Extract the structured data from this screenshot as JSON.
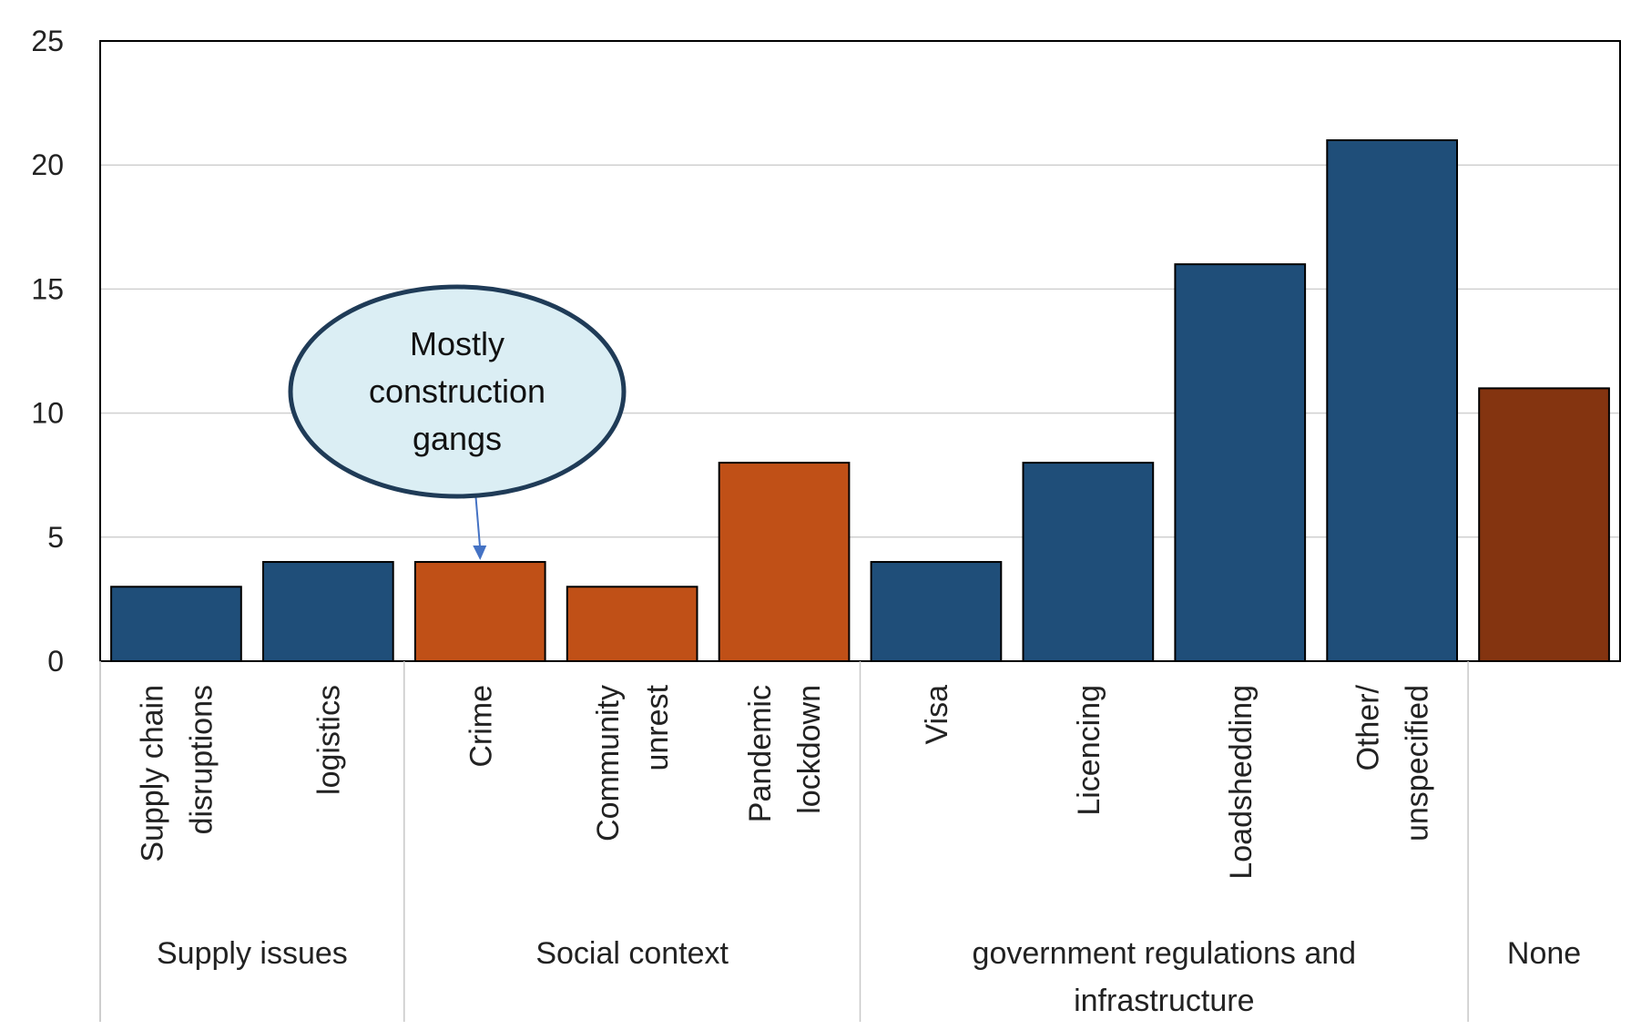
{
  "chart_data": {
    "type": "bar",
    "ylim": [
      0,
      25
    ],
    "yticks": [
      0,
      5,
      10,
      15,
      20,
      25
    ],
    "grid": true,
    "categories": [
      {
        "label_lines": [
          "Supply chain",
          "disruptions"
        ],
        "value": 3,
        "color": "#1F4E79"
      },
      {
        "label_lines": [
          "logistics"
        ],
        "value": 4,
        "color": "#1F4E79"
      },
      {
        "label_lines": [
          "Crime"
        ],
        "value": 4,
        "color": "#C05017"
      },
      {
        "label_lines": [
          "Community",
          "unrest"
        ],
        "value": 3,
        "color": "#C05017"
      },
      {
        "label_lines": [
          "Pandemic",
          "lockdown"
        ],
        "value": 8,
        "color": "#C05017"
      },
      {
        "label_lines": [
          "Visa"
        ],
        "value": 4,
        "color": "#1F4E79"
      },
      {
        "label_lines": [
          "Licencing"
        ],
        "value": 8,
        "color": "#1F4E79"
      },
      {
        "label_lines": [
          "Loadshedding"
        ],
        "value": 16,
        "color": "#1F4E79"
      },
      {
        "label_lines": [
          "Other/",
          "unspecified"
        ],
        "value": 21,
        "color": "#1F4E79"
      },
      {
        "label_lines": [],
        "value": 11,
        "color": "#843410"
      }
    ],
    "groups": [
      {
        "label_lines": [
          "Supply issues"
        ],
        "start": 0,
        "end": 1
      },
      {
        "label_lines": [
          "Social context"
        ],
        "start": 2,
        "end": 4
      },
      {
        "label_lines": [
          "government regulations and",
          "infrastructure"
        ],
        "start": 5,
        "end": 8
      },
      {
        "label_lines": [
          "None"
        ],
        "start": 9,
        "end": 9
      }
    ],
    "annotation": {
      "text_lines": [
        "Mostly",
        "construction",
        "gangs"
      ],
      "target_index": 2,
      "fill": "#DBEEF4",
      "stroke": "#1F3B57"
    }
  }
}
